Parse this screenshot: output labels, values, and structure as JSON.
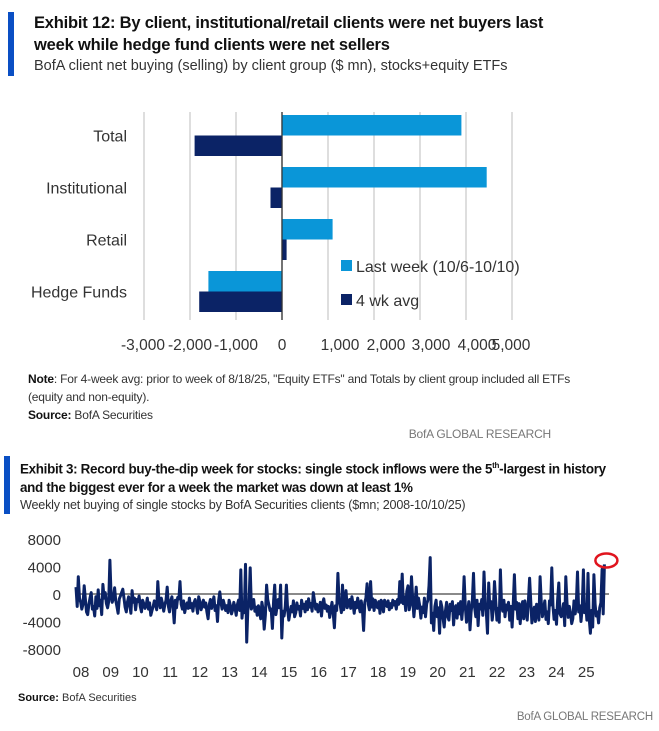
{
  "exhibit12": {
    "title_line1": "Exhibit 12: By client, institutional/retail clients were net buyers last",
    "title_line2": "week while hedge fund clients were net sellers",
    "subtitle": "BofA client net buying (selling) by client group ($ mn), stocks+equity ETFs",
    "note_label": "Note",
    "note_text": ": For 4-week avg: prior to week of 8/18/25, \"Equity ETFs\" and Totals by client group included all ETFs (equity and non-equity).",
    "source_label": "Source:",
    "source_text": " BofA Securities",
    "brand": "BofA GLOBAL RESEARCH"
  },
  "exhibit3": {
    "title_line1_a": "Exhibit 3: Record buy-the-dip week for stocks: single stock inflows were the 5",
    "title_sup": "th",
    "title_line1_b": "-largest in history",
    "title_line2": "and the biggest ever for a week the market was down at least 1%",
    "subtitle": "Weekly net buying of single stocks by BofA Securities clients ($mn; 2008-10/10/25)",
    "source_label": "Source:",
    "source_text": " BofA Securities",
    "brand": "BofA GLOBAL RESEARCH"
  },
  "colors": {
    "accent_bar": "#0a4fc4",
    "last_week": "#0a96d8",
    "four_wk": "#0b2366",
    "line": "#0b2366",
    "highlight": "#e0141e"
  },
  "chart_data": [
    {
      "type": "bar",
      "orientation": "horizontal",
      "categories": [
        "Total",
        "Institutional",
        "Retail",
        "Hedge Funds"
      ],
      "series": [
        {
          "name": "Last week (10/6-10/10)",
          "values": [
            3900,
            4450,
            1100,
            -1600
          ]
        },
        {
          "name": "4 wk avg",
          "values": [
            -1900,
            -250,
            100,
            -1800
          ]
        }
      ],
      "xticks": [
        -3000,
        -2000,
        -1000,
        0,
        1000,
        2000,
        3000,
        4000,
        5000
      ],
      "xtick_labels": [
        "-3,000",
        "-2,000",
        "-1,000",
        "0",
        "1,000",
        "2,000",
        "3,000",
        "4,000",
        "5,000"
      ],
      "xlim": [
        -3000,
        5000
      ],
      "grid": true,
      "legend_position": "bottom-right"
    },
    {
      "type": "line",
      "title": "Weekly net buying of single stocks",
      "xlabel": "",
      "ylabel": "$mn",
      "xlim": [
        2008,
        2025.8
      ],
      "ylim": [
        -8000,
        8000
      ],
      "yticks": [
        8000,
        4000,
        0,
        -4000,
        -8000
      ],
      "xtick_labels": [
        "08",
        "09",
        "10",
        "11",
        "12",
        "13",
        "14",
        "15",
        "16",
        "17",
        "18",
        "19",
        "20",
        "21",
        "22",
        "23",
        "24",
        "25"
      ],
      "series": [
        {
          "name": "Weekly net buying",
          "x_start": 2008.0,
          "x_end": 2025.78,
          "values": [
            1000,
            -1800,
            2500,
            -600,
            -1200,
            -2200,
            -1500,
            1200,
            -800,
            -2600,
            -3000,
            -1500,
            -600,
            200,
            -2200,
            -1800,
            -3200,
            -400,
            -2100,
            600,
            -1700,
            -900,
            -3000,
            1400,
            -600,
            200,
            -1400,
            -2000,
            -1100,
            4900,
            -300,
            -1200,
            -600,
            900,
            -900,
            -1800,
            -2800,
            -700,
            -300,
            200,
            700,
            -500,
            -1900,
            -2600,
            -1200,
            -400,
            -1700,
            -2800,
            500,
            -1200,
            -600,
            -2300,
            -800,
            -1100,
            -300,
            -1800,
            -2600,
            -900,
            -1400,
            -2100,
            -1700,
            -600,
            -2200,
            -1300,
            -3100,
            -2400,
            -1800,
            -1000,
            -1500,
            -2300,
            1800,
            -1100,
            -2000,
            -600,
            -1400,
            -2500,
            -1600,
            -900,
            1000,
            -1800,
            -2600,
            -1000,
            -400,
            -1800,
            -4200,
            -900,
            -2000,
            -500,
            -700,
            1800,
            -1500,
            -2200,
            -1000,
            -2700,
            -1800,
            -1300,
            -2100,
            -600,
            -2000,
            -1400,
            -2500,
            -1200,
            -800,
            -1700,
            -2800,
            -400,
            -1100,
            -2300,
            -1600,
            -900,
            -1900,
            -1300,
            -2600,
            -3600,
            -1500,
            -800,
            -2100,
            -1200,
            -400,
            -2400,
            -1700,
            -4000,
            -1000,
            300,
            -1300,
            -2200,
            -900,
            -1600,
            -2400,
            -1700,
            -2700,
            -900,
            -1600,
            -2900,
            -2300,
            -1200,
            -2000,
            -3100,
            -1600,
            -900,
            -2400,
            3500,
            -3500,
            -1800,
            -2700,
            4300,
            -7000,
            -2400,
            -1300,
            3800,
            -2200,
            -1500,
            -800,
            -2500,
            -1900,
            -3100,
            -1700,
            -2600,
            -3600,
            -1200,
            -2200,
            -5100,
            -3000,
            1300,
            -800,
            -1600,
            -2400,
            -2200,
            -5000,
            -1000,
            1300,
            -3000,
            -1800,
            -800,
            -2000,
            1300,
            -6400,
            -2500,
            -3200,
            -1800,
            1300,
            -2200,
            -3800,
            -2800,
            -1800,
            -2600,
            -1000,
            -3300,
            -2700,
            -1300,
            -2200,
            -1800,
            -3200,
            -900,
            -2100,
            -1500,
            -2600,
            -1100,
            -2300,
            -700,
            -1900,
            -1400,
            -2500,
            200,
            -1000,
            -2200,
            -1500,
            -2600,
            -2000,
            -1200,
            -3200,
            -1300,
            -700,
            -2100,
            -1600,
            -2500,
            -1800,
            -3400,
            -2200,
            -1200,
            -2800,
            -4900,
            -1700,
            -2400,
            3000,
            -800,
            -1600,
            -2700,
            1300,
            -2300,
            -1200,
            500,
            -2000,
            -1400,
            -800,
            -2100,
            -400,
            -1500,
            -2800,
            -1200,
            -2000,
            -600,
            -1700,
            -2600,
            -1000,
            -2200,
            -5300,
            -1200,
            -600,
            1500,
            -1500,
            -2300,
            1800,
            -1900,
            -700,
            -2400,
            -900,
            -1600,
            -2000,
            -1100,
            -2800,
            -900,
            -1200,
            -2600,
            -900,
            -1500,
            -1800,
            -1000,
            -2300,
            -1400,
            -2000,
            -900,
            -1600,
            -1100,
            -2200,
            -800,
            -1500,
            1800,
            -1200,
            2900,
            -1400,
            -400,
            -2400,
            400,
            1200,
            -2300,
            -1500,
            2500,
            -800,
            -3300,
            -1400,
            1000,
            -2100,
            -600,
            -1700,
            -3500,
            -1900,
            -2700,
            -600,
            -3300,
            -1400,
            -900,
            1200,
            5300,
            -4200,
            -2800,
            -5300,
            -1800,
            -900,
            -3300,
            -2000,
            -5700,
            -1100,
            -1900,
            -3600,
            -4800,
            -2500,
            -1200,
            -3300,
            -3800,
            -1500,
            -2400,
            -1100,
            -4500,
            -2000,
            -1700,
            -3500,
            -1400,
            -2900,
            -1100,
            -3700,
            -1600,
            2500,
            -1800,
            -4100,
            -2600,
            -1100,
            -5200,
            -2600,
            -1100,
            3000,
            -1900,
            -3300,
            -900,
            -4600,
            -1500,
            -2200,
            -800,
            -3100,
            3200,
            -1300,
            -2600,
            -5700,
            1600,
            -2000,
            -1100,
            -3800,
            -2200,
            1800,
            -1000,
            -3800,
            -2100,
            -4100,
            3500,
            -1400,
            -2500,
            -900,
            -3300,
            -1600,
            -2300,
            -1200,
            -3800,
            -1800,
            -4800,
            -1600,
            2800,
            -2200,
            -1200,
            -3600,
            -1400,
            -4300,
            -2000,
            -1100,
            -3600,
            -1000,
            -2500,
            -3800,
            -1000,
            2300,
            -1200,
            -4200,
            -2900,
            -1900,
            -4000,
            -1500,
            -2700,
            -3800,
            2500,
            -1300,
            -3300,
            -2200,
            -1000,
            -3700,
            -2600,
            -4300,
            -1000,
            -1600,
            3800,
            -1800,
            -3700,
            -2400,
            -4400,
            -900,
            1600,
            -2900,
            -3300,
            -2600,
            -1400,
            -4600,
            2500,
            -1300,
            -3400,
            -1800,
            -2800,
            -4300,
            -3600,
            -1000,
            -2900,
            -1500,
            3200,
            -2600,
            -1700,
            -4000,
            -2000,
            3500,
            -2700,
            -1500,
            -3800,
            3000,
            -3600,
            -5700,
            -2400,
            -4800,
            2800,
            -1500,
            -3200,
            -2600,
            -4200,
            -2000,
            -1300,
            3600,
            -2900,
            4300
          ]
        }
      ],
      "annotation": "red circle highlighting latest week (5th-largest inflow)",
      "grid": false
    }
  ]
}
